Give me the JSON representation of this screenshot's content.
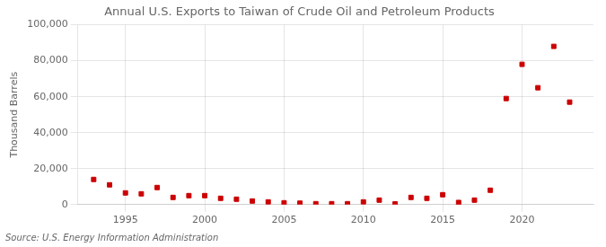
{
  "chart_data": {
    "type": "scatter",
    "title": "Annual U.S. Exports to Taiwan of Crude Oil and Petroleum Products",
    "ylabel": "Thousand Barrels",
    "source": "Source: U.S. Energy Information Administration",
    "x": [
      1993,
      1994,
      1995,
      1996,
      1997,
      1998,
      1999,
      2000,
      2001,
      2002,
      2003,
      2004,
      2005,
      2006,
      2007,
      2008,
      2009,
      2010,
      2011,
      2012,
      2013,
      2014,
      2015,
      2016,
      2017,
      2018,
      2019,
      2020,
      2021,
      2022,
      2023
    ],
    "values": [
      14000,
      11000,
      6500,
      6000,
      9500,
      4000,
      5000,
      5000,
      3500,
      3000,
      2000,
      1500,
      1000,
      800,
      500,
      500,
      500,
      1500,
      2500,
      400,
      4000,
      3500,
      5500,
      1200,
      2500,
      8000,
      59000,
      78000,
      65000,
      88000,
      57000
    ],
    "color": "#cc0000",
    "marker": "square",
    "xlim": [
      1992,
      2024.5
    ],
    "xticks": [
      1995,
      2000,
      2005,
      2010,
      2015,
      2020
    ],
    "ylim": [
      0,
      100000
    ],
    "yticks": [
      0,
      {
        "value": 20000,
        "label": "20,000"
      },
      {
        "value": 40000,
        "label": "40,000"
      },
      {
        "value": 60000,
        "label": "60,000"
      },
      {
        "value": 80000,
        "label": "80,000"
      },
      {
        "value": 100000,
        "label": "100,000"
      }
    ],
    "grid": true
  }
}
